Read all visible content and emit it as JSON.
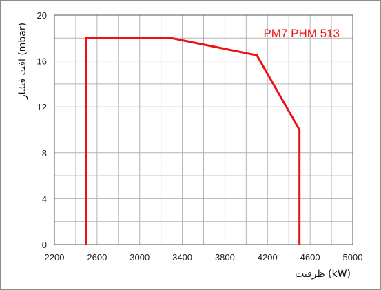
{
  "chart_data": {
    "type": "line",
    "xlabel": "ظرفیت (kW)",
    "ylabel": "افت فشار (mbar)",
    "xlim": [
      2200,
      5000
    ],
    "ylim": [
      0,
      20
    ],
    "x_ticks": [
      "2200",
      "2600",
      "3000",
      "3400",
      "3800",
      "4200",
      "4600",
      "5000"
    ],
    "y_ticks": [
      "0",
      "4",
      "8",
      "12",
      "16",
      "20"
    ],
    "x_minor_step": 200,
    "y_minor_step": 2,
    "grid": true,
    "series": [
      {
        "name": "PM7 PHM 513",
        "color": "#ee1111",
        "points": [
          [
            2500,
            0
          ],
          [
            2500,
            18
          ],
          [
            3300,
            18
          ],
          [
            4100,
            16.5
          ],
          [
            4500,
            10
          ],
          [
            4500,
            0
          ]
        ]
      }
    ]
  }
}
